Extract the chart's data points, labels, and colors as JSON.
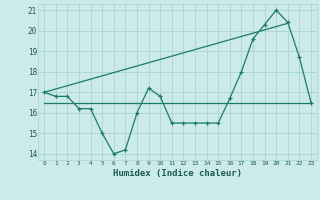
{
  "xlabel": "Humidex (Indice chaleur)",
  "bg_color": "#cceae8",
  "grid_color": "#aad4d0",
  "line_color": "#1a7a6e",
  "x_data": [
    0,
    1,
    2,
    3,
    4,
    5,
    6,
    7,
    8,
    9,
    10,
    11,
    12,
    13,
    14,
    15,
    16,
    17,
    18,
    19,
    20,
    21,
    22,
    23
  ],
  "y_main": [
    17.0,
    16.8,
    16.8,
    16.2,
    16.2,
    15.0,
    14.0,
    14.2,
    16.0,
    17.2,
    16.8,
    15.5,
    15.5,
    15.5,
    15.5,
    15.5,
    16.7,
    18.0,
    19.6,
    20.3,
    21.0,
    20.4,
    18.7,
    16.5
  ],
  "y_rising": [
    17.0,
    17.16,
    17.32,
    17.48,
    17.64,
    17.8,
    17.96,
    18.12,
    18.28,
    18.44,
    18.6,
    18.76,
    18.92,
    19.08,
    19.24,
    19.4,
    19.56,
    19.72,
    19.88,
    20.04,
    20.2,
    20.36
  ],
  "x_rising": [
    0,
    1,
    2,
    3,
    4,
    5,
    6,
    7,
    8,
    9,
    10,
    11,
    12,
    13,
    14,
    15,
    16,
    17,
    18,
    19,
    20,
    21
  ],
  "y_flat": [
    16.5,
    16.5,
    16.5,
    16.5,
    16.5,
    16.5,
    16.5,
    16.5,
    16.5,
    16.5,
    16.5,
    16.5,
    16.5,
    16.5,
    16.5,
    16.5,
    16.5,
    16.5,
    16.5,
    16.5,
    16.5,
    16.5,
    16.5,
    16.5
  ],
  "ylim": [
    13.7,
    21.3
  ],
  "xlim": [
    -0.5,
    23.5
  ],
  "yticks": [
    14,
    15,
    16,
    17,
    18,
    19,
    20,
    21
  ],
  "xticks": [
    0,
    1,
    2,
    3,
    4,
    5,
    6,
    7,
    8,
    9,
    10,
    11,
    12,
    13,
    14,
    15,
    16,
    17,
    18,
    19,
    20,
    21,
    22,
    23
  ]
}
